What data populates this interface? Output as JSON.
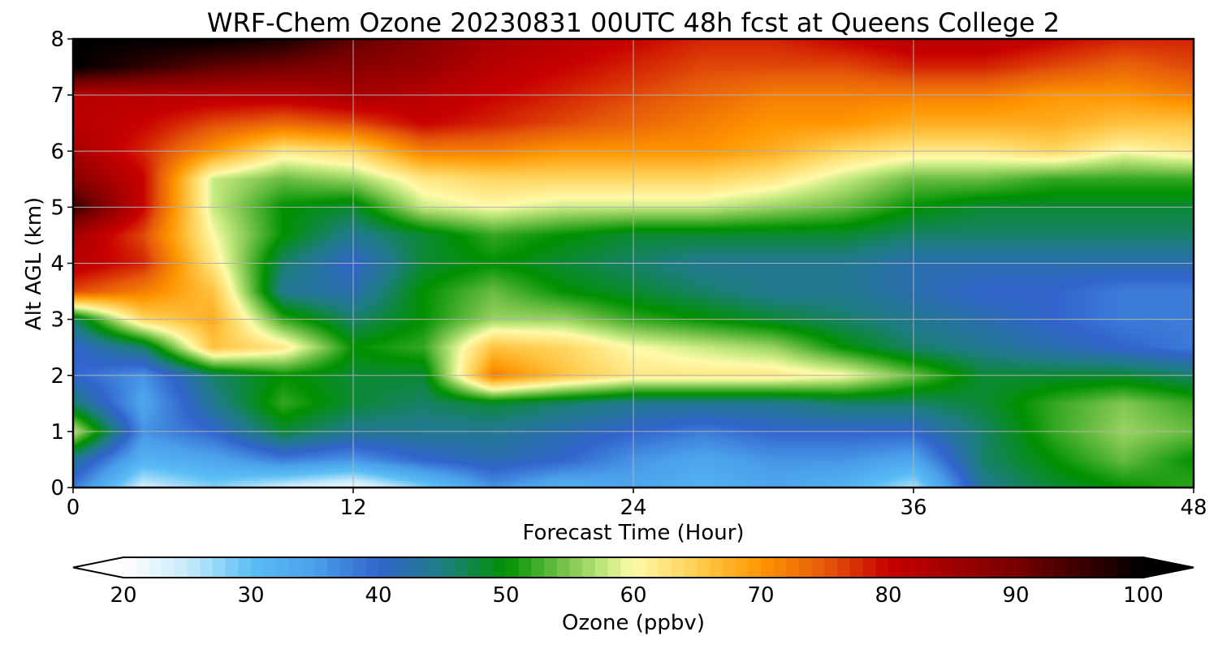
{
  "chart_data": {
    "type": "heatmap",
    "title": "WRF-Chem Ozone  20230831 00UTC 48h fcst at Queens College 2",
    "xlabel": "Forecast Time (Hour)",
    "ylabel": "Alt AGL (km)",
    "xlim": [
      0,
      48
    ],
    "ylim": [
      0,
      8
    ],
    "xticks": [
      0,
      12,
      24,
      36,
      48
    ],
    "yticks": [
      0,
      1,
      2,
      3,
      4,
      5,
      6,
      7,
      8
    ],
    "grid": true,
    "x": [
      0,
      3,
      6,
      9,
      12,
      15,
      18,
      21,
      24,
      27,
      30,
      33,
      36,
      39,
      42,
      45,
      48
    ],
    "y": [
      0,
      0.5,
      1,
      1.5,
      2,
      2.5,
      3,
      3.5,
      4,
      4.5,
      5,
      5.5,
      6,
      6.5,
      7,
      7.5,
      8
    ],
    "z": [
      [
        38,
        24,
        28,
        24,
        21,
        28,
        36,
        32,
        34,
        32,
        34,
        32,
        26,
        44,
        48,
        50,
        52
      ],
      [
        44,
        32,
        34,
        38,
        36,
        40,
        42,
        40,
        36,
        34,
        36,
        36,
        34,
        46,
        50,
        54,
        50
      ],
      [
        58,
        36,
        40,
        48,
        44,
        44,
        44,
        42,
        40,
        38,
        40,
        40,
        40,
        46,
        52,
        56,
        54
      ],
      [
        46,
        34,
        44,
        52,
        48,
        46,
        48,
        46,
        44,
        44,
        44,
        46,
        46,
        48,
        52,
        55,
        52
      ],
      [
        40,
        36,
        46,
        50,
        48,
        48,
        72,
        66,
        62,
        62,
        62,
        60,
        54,
        48,
        48,
        48,
        46
      ],
      [
        40,
        46,
        66,
        62,
        50,
        52,
        66,
        64,
        60,
        58,
        56,
        50,
        46,
        44,
        42,
        40,
        38
      ],
      [
        46,
        64,
        68,
        52,
        46,
        50,
        56,
        56,
        52,
        50,
        48,
        46,
        44,
        42,
        40,
        38,
        38
      ],
      [
        76,
        72,
        66,
        44,
        42,
        50,
        54,
        50,
        48,
        46,
        44,
        44,
        42,
        40,
        40,
        38,
        38
      ],
      [
        82,
        78,
        62,
        46,
        40,
        48,
        50,
        48,
        46,
        44,
        44,
        44,
        42,
        42,
        42,
        42,
        42
      ],
      [
        84,
        76,
        60,
        50,
        44,
        48,
        52,
        50,
        48,
        48,
        48,
        48,
        46,
        46,
        46,
        46,
        46
      ],
      [
        96,
        80,
        58,
        50,
        48,
        58,
        60,
        58,
        58,
        58,
        56,
        54,
        50,
        48,
        48,
        48,
        48
      ],
      [
        88,
        80,
        58,
        54,
        56,
        62,
        64,
        64,
        64,
        64,
        62,
        58,
        54,
        54,
        52,
        52,
        52
      ],
      [
        84,
        78,
        70,
        62,
        64,
        72,
        72,
        70,
        70,
        70,
        68,
        64,
        62,
        62,
        64,
        60,
        62
      ],
      [
        82,
        80,
        76,
        74,
        76,
        80,
        78,
        76,
        74,
        72,
        70,
        70,
        68,
        68,
        68,
        66,
        66
      ],
      [
        82,
        82,
        82,
        82,
        84,
        82,
        80,
        78,
        76,
        74,
        72,
        72,
        72,
        72,
        70,
        70,
        72
      ],
      [
        100,
        96,
        92,
        90,
        88,
        86,
        82,
        80,
        78,
        76,
        76,
        76,
        78,
        78,
        76,
        74,
        76
      ],
      [
        100,
        100,
        100,
        98,
        92,
        88,
        84,
        82,
        80,
        78,
        78,
        80,
        82,
        82,
        80,
        78,
        78
      ]
    ],
    "colorbar": {
      "label": "Ozone  (ppbv)",
      "min": 20,
      "max": 100,
      "ticks": [
        20,
        30,
        40,
        50,
        60,
        70,
        80,
        90,
        100
      ],
      "extend": "both"
    }
  }
}
